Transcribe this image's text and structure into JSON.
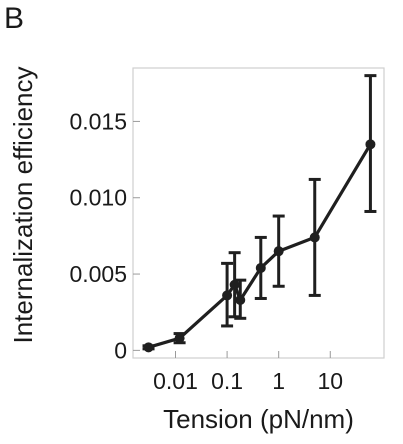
{
  "panel_label": "B",
  "chart_data": {
    "type": "line",
    "xlabel": "Tension (pN/nm)",
    "ylabel": "Internalization efficiency",
    "x_scale": "log",
    "xlim": [
      0.0015,
      110
    ],
    "ylim": [
      -0.0005,
      0.0185
    ],
    "x_ticks": [
      {
        "value": 0.01,
        "label": "0.01"
      },
      {
        "value": 0.1,
        "label": "0.1"
      },
      {
        "value": 1,
        "label": "1"
      },
      {
        "value": 10,
        "label": "10"
      }
    ],
    "y_ticks": [
      {
        "value": 0,
        "label": "0"
      },
      {
        "value": 0.005,
        "label": "0.005"
      },
      {
        "value": 0.01,
        "label": "0.010"
      },
      {
        "value": 0.015,
        "label": "0.015"
      }
    ],
    "series": [
      {
        "color": "#1f1f1f",
        "points": [
          {
            "x": 0.003,
            "y": 0.0002,
            "err_low": 0.0001,
            "err_high": 0.0003
          },
          {
            "x": 0.012,
            "y": 0.0008,
            "err_low": 0.0005,
            "err_high": 0.0011
          },
          {
            "x": 0.1,
            "y": 0.0036,
            "err_low": 0.0016,
            "err_high": 0.0057
          },
          {
            "x": 0.14,
            "y": 0.0043,
            "err_low": 0.0022,
            "err_high": 0.0064
          },
          {
            "x": 0.18,
            "y": 0.0033,
            "err_low": 0.0021,
            "err_high": 0.0046
          },
          {
            "x": 0.45,
            "y": 0.0054,
            "err_low": 0.0034,
            "err_high": 0.0074
          },
          {
            "x": 1.0,
            "y": 0.0065,
            "err_low": 0.0042,
            "err_high": 0.0088
          },
          {
            "x": 5.0,
            "y": 0.0074,
            "err_low": 0.0036,
            "err_high": 0.0112
          },
          {
            "x": 60,
            "y": 0.0135,
            "err_low": 0.0091,
            "err_high": 0.018
          }
        ]
      }
    ],
    "grid": false,
    "legend": "none"
  }
}
